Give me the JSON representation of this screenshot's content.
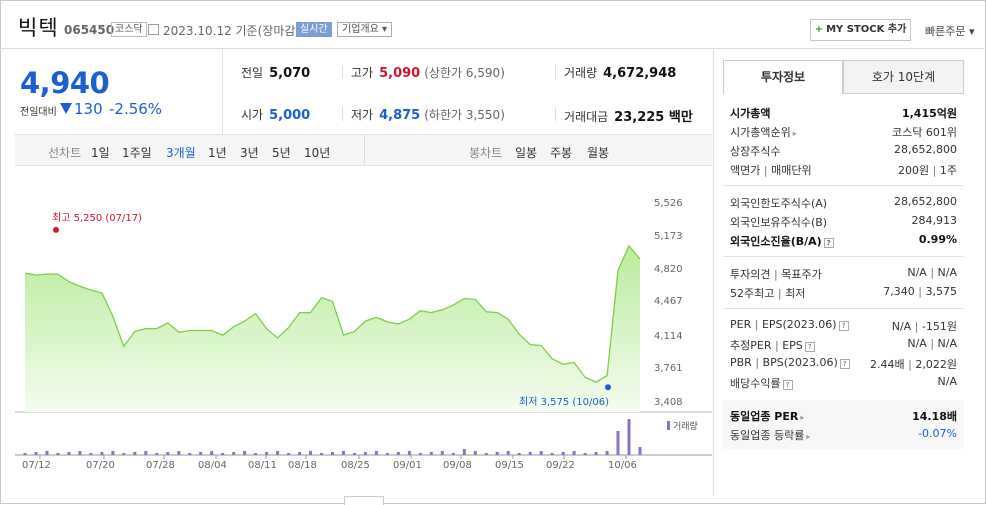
{
  "header": {
    "name": "빅텍",
    "code": "065450",
    "market": "코스닥",
    "date": "2023.10.12 기준(장마감)",
    "realtime": "실시간",
    "company_overview": "기업개요",
    "my_stock": "MY STOCK 추가",
    "quick_order": "빠른주문"
  },
  "price": {
    "current": "4,940",
    "change_label": "전일대비",
    "change": "130",
    "change_pct": "-2.56%"
  },
  "quotes": {
    "prev_label": "전일",
    "prev": "5,070",
    "high_label": "고가",
    "high": "5,090",
    "upper_limit": "(상한가 6,590)",
    "volume_label": "거래량",
    "volume": "4,672,948",
    "open_label": "시가",
    "open": "5,000",
    "low_label": "저가",
    "low": "4,875",
    "lower_limit": "(하한가 3,550)",
    "amount_label": "거래대금",
    "amount": "23,225 백만"
  },
  "period_bar": {
    "line_label": "선차트",
    "periods": [
      "1일",
      "1주일",
      "3개월",
      "1년",
      "3년",
      "5년",
      "10년"
    ],
    "selected": "3개월",
    "candle_label": "봉차트",
    "candles": [
      "일봉",
      "주봉",
      "월봉"
    ]
  },
  "chart_data": {
    "type": "area",
    "x_ticks": [
      "07/12",
      "07/20",
      "07/28",
      "08/04",
      "08/11",
      "08/18",
      "08/25",
      "09/01",
      "09/08",
      "09/15",
      "09/22",
      "10/06"
    ],
    "y_ticks": [
      "5,526",
      "5,173",
      "4,820",
      "4,467",
      "4,114",
      "3,761",
      "3,408"
    ],
    "ylim": [
      3408,
      5526
    ],
    "high_annotation": "최고 5,250 (07/17)",
    "low_annotation": "최저 3,575 (10/06)",
    "volume_legend": "거래량",
    "series": [
      {
        "values": [
          4790,
          4770,
          4780,
          4780,
          4700,
          4650,
          4610,
          4580,
          4330,
          4010,
          4170,
          4200,
          4200,
          4260,
          4160,
          4180,
          4180,
          4180,
          4130,
          4220,
          4280,
          4360,
          4200,
          4100,
          4210,
          4370,
          4370,
          4530,
          4490,
          4130,
          4170,
          4280,
          4320,
          4270,
          4250,
          4300,
          4390,
          4370,
          4400,
          4450,
          4520,
          4510,
          4380,
          4370,
          4300,
          4140,
          4030,
          4020,
          3880,
          3820,
          3840,
          3680,
          3630,
          3700,
          4820,
          5080,
          4940
        ]
      }
    ]
  },
  "right_panel": {
    "tab_info": "투자정보",
    "tab_orderbook": "호가 10단계",
    "market_cap_label": "시가총액",
    "market_cap": "1,415억원",
    "market_cap_rank_label": "시가총액순위",
    "market_cap_rank": "코스닥 601위",
    "shares_label": "상장주식수",
    "shares": "28,652,800",
    "par_label": "액면가",
    "unit_label": "매매단위",
    "par": "200원",
    "unit": "1주",
    "foreign_limit_label": "외국인한도주식수(A)",
    "foreign_limit": "28,652,800",
    "foreign_hold_label": "외국인보유주식수(B)",
    "foreign_hold": "284,913",
    "foreign_ratio_label": "외국인소진율(B/A)",
    "foreign_ratio": "0.99%",
    "opinion_label": "투자의견",
    "target_label": "목표주가",
    "opinion": "N/A",
    "target": "N/A",
    "w52_high_label": "52주최고",
    "w52_low_label": "최저",
    "w52_high": "7,340",
    "w52_low": "3,575",
    "per_label": "PER",
    "eps_label": "EPS(2023.06)",
    "per": "N/A",
    "eps": "-151원",
    "est_per_label": "추정PER",
    "est_eps_label": "EPS",
    "est_per": "N/A",
    "est_eps": "N/A",
    "pbr_label": "PBR",
    "bps_label": "BPS(2023.06)",
    "pbr": "2.44배",
    "bps": "2,022원",
    "dividend_label": "배당수익률",
    "dividend": "N/A",
    "peer_per_label": "동일업종 PER",
    "peer_per": "14.18배",
    "peer_rate_label": "동일업종 등락률",
    "peer_rate": "-0.07%"
  },
  "colors": {
    "blue": "#1b5fd1",
    "red": "#d2142d",
    "line": "#7ccf4a",
    "volume": "#8d72c4"
  }
}
